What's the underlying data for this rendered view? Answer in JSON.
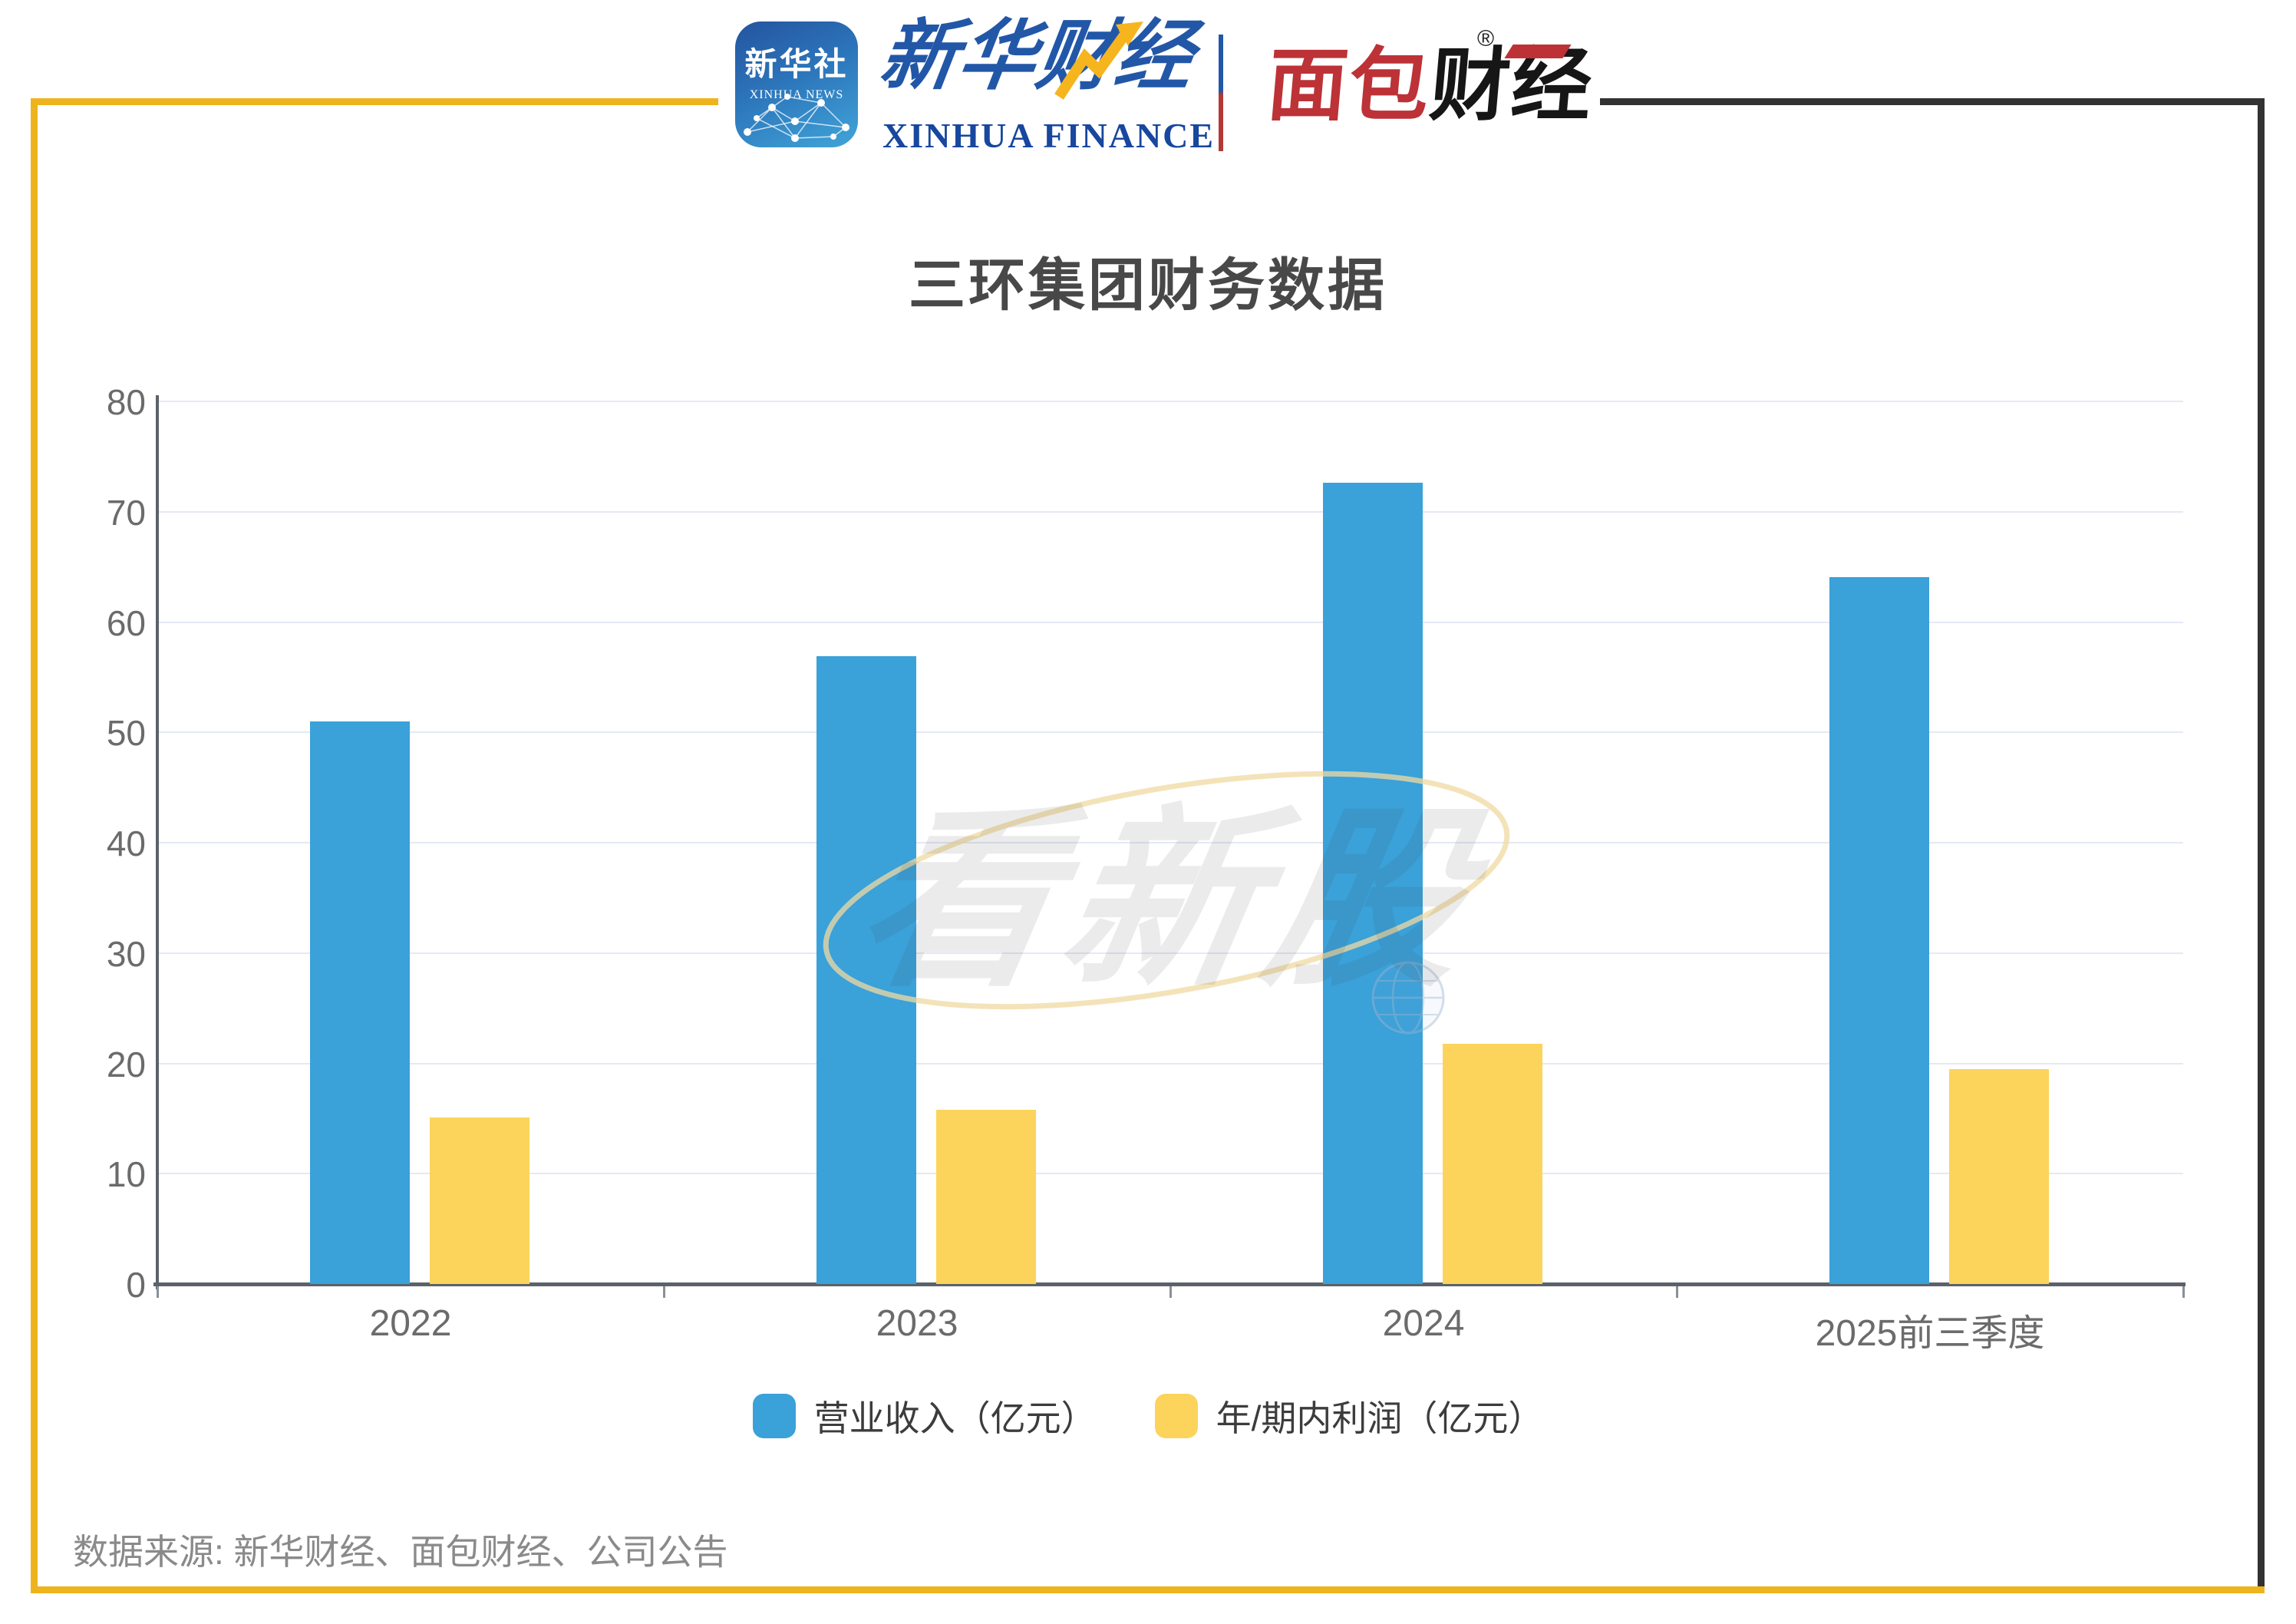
{
  "colors": {
    "accent_yellow": "#edb41e",
    "accent_dark": "#323232",
    "grid": "#e4e9f4",
    "axis": "#5b6269",
    "tick_label": "#6b6b6b",
    "title": "#484848",
    "legend_text": "#3c3c3c",
    "source_text": "#8a8a8a"
  },
  "header": {
    "app_icon": {
      "cn": "新华社",
      "en": "XINHUA NEWS"
    },
    "xinhua_finance": {
      "cn": "新华财经",
      "en": "XINHUA FINANCE"
    },
    "bread_finance": {
      "cn_red": "面包",
      "cn_black": "财经",
      "registered": "®"
    }
  },
  "chart_data": {
    "type": "bar",
    "title": "三环集团财务数据",
    "categories": [
      "2022",
      "2023",
      "2024",
      "2025前三季度"
    ],
    "series": [
      {
        "name": "营业收入（亿元）",
        "color": "#3aa1d9",
        "values": [
          51.0,
          56.9,
          72.6,
          64.1
        ]
      },
      {
        "name": "年/期内利润（亿元）",
        "color": "#fcd45c",
        "values": [
          15.1,
          15.8,
          21.8,
          19.5
        ]
      }
    ],
    "xlabel": "",
    "ylabel": "",
    "ylim": [
      0,
      80
    ],
    "y_tick_step": 10,
    "grid": true,
    "legend_position": "bottom"
  },
  "watermark": {
    "text": "看新股"
  },
  "footer": {
    "source": "数据来源: 新华财经、面包财经、公司公告"
  }
}
